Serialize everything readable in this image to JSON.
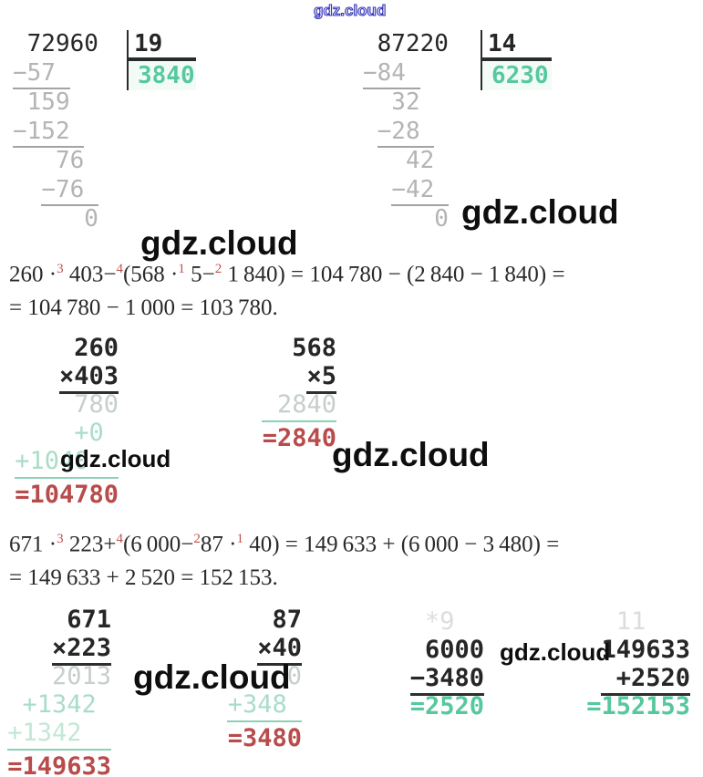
{
  "watermark": {
    "text": "gdz.cloud"
  },
  "colors": {
    "result_red": "#b94b4b",
    "result_green": "#55c89d",
    "quotient_green": "#57c9a0",
    "faint_green": "#a9ddc8",
    "faint_gray": "#c6cfc9",
    "step_gray": "#b4b4b4",
    "ink_black": "#262626",
    "watermark_blue": "#3434b8"
  },
  "division1": {
    "divisor": "19",
    "quotient": "3840",
    "rows": [
      {
        "cls": "blk",
        "segs": [
          {
            "t": " 72960"
          }
        ]
      },
      {
        "cls": "gry",
        "segs": [
          {
            "t": "−57 ",
            "u": true
          }
        ]
      },
      {
        "cls": "gry",
        "segs": [
          {
            "t": " 159"
          }
        ]
      },
      {
        "cls": "gry",
        "segs": [
          {
            "t": "−152 ",
            "u": true
          }
        ]
      },
      {
        "cls": "gry",
        "segs": [
          {
            "t": "   76"
          }
        ]
      },
      {
        "cls": "gry",
        "segs": [
          {
            "t": "  "
          },
          {
            "t": "−76 ",
            "u": true
          }
        ]
      },
      {
        "cls": "gry",
        "segs": [
          {
            "t": "     0"
          }
        ]
      }
    ]
  },
  "division2": {
    "divisor": "14",
    "quotient": "6230",
    "rows": [
      {
        "cls": "blk",
        "segs": [
          {
            "t": " 87220"
          }
        ]
      },
      {
        "cls": "gry",
        "segs": [
          {
            "t": "−84 ",
            "u": true
          }
        ]
      },
      {
        "cls": "gry",
        "segs": [
          {
            "t": "  32"
          }
        ]
      },
      {
        "cls": "gry",
        "segs": [
          {
            "t": " "
          },
          {
            "t": "−28 ",
            "u": true
          }
        ]
      },
      {
        "cls": "gry",
        "segs": [
          {
            "t": "   42"
          }
        ]
      },
      {
        "cls": "gry",
        "segs": [
          {
            "t": "  "
          },
          {
            "t": "−42 ",
            "u": true
          }
        ]
      },
      {
        "cls": "gry",
        "segs": [
          {
            "t": "     0"
          }
        ]
      }
    ]
  },
  "equation1": {
    "line1": [
      {
        "t": "260 ·"
      },
      {
        "sup": "3"
      },
      {
        "t": " 403−"
      },
      {
        "sup": "4"
      },
      {
        "t": "(568 ·"
      },
      {
        "sup": "1"
      },
      {
        "t": " 5−"
      },
      {
        "sup": "2"
      },
      {
        "t": " 1 840) = 104 780 − (2 840 − 1 840) ="
      }
    ],
    "line2": [
      {
        "t": "= 104 780 − 1 000 = 103 780."
      }
    ]
  },
  "equation2": {
    "line1": [
      {
        "t": "671 ·"
      },
      {
        "sup": "3"
      },
      {
        "t": " 223+"
      },
      {
        "sup": "4"
      },
      {
        "t": "(6 000−"
      },
      {
        "sup": "2"
      },
      {
        "t": "87 ·"
      },
      {
        "sup": "1"
      },
      {
        "t": " 40) = 149 633 + (6 000 − 3 480) ="
      }
    ],
    "line2": [
      {
        "t": "= 149 633 + 2 520 = 152 153."
      }
    ]
  },
  "mult260": {
    "rows": [
      {
        "cls": "blk",
        "segs": [
          {
            "t": "260"
          }
        ]
      },
      {
        "cls": "blk",
        "segs": [
          {
            "t": "×403",
            "ud": true
          }
        ]
      },
      {
        "cls": "fgy",
        "segs": [
          {
            "t": "780"
          }
        ]
      },
      {
        "cls": "fgn",
        "segs": [
          {
            "t": "+0 "
          }
        ]
      },
      {
        "cls": "fgn",
        "segs": [
          {
            "t": "+1040  "
          }
        ]
      },
      {
        "hr": true
      },
      {
        "cls": "red",
        "segs": [
          {
            "t": "=104780"
          }
        ]
      }
    ]
  },
  "mult568": {
    "rows": [
      {
        "cls": "blk",
        "segs": [
          {
            "t": "568"
          }
        ]
      },
      {
        "cls": "blk",
        "segs": [
          {
            "t": "×5",
            "ud": true
          }
        ]
      },
      {
        "cls": "fgy",
        "segs": [
          {
            "t": "2840"
          }
        ]
      },
      {
        "hr": true
      },
      {
        "cls": "red",
        "segs": [
          {
            "t": "=2840"
          }
        ]
      }
    ]
  },
  "mult671": {
    "rows": [
      {
        "cls": "blk",
        "segs": [
          {
            "t": "671"
          }
        ]
      },
      {
        "cls": "blk",
        "segs": [
          {
            "t": "×223",
            "ud": true
          }
        ]
      },
      {
        "cls": "fgy",
        "segs": [
          {
            "t": "2013"
          }
        ]
      },
      {
        "cls": "fgn",
        "segs": [
          {
            "t": "+1342 "
          }
        ]
      },
      {
        "cls": "fgn2",
        "segs": [
          {
            "t": "+1342  "
          }
        ]
      },
      {
        "hr": true
      },
      {
        "cls": "red",
        "segs": [
          {
            "t": "=149633"
          }
        ]
      }
    ]
  },
  "mult87": {
    "rows": [
      {
        "cls": "blk",
        "segs": [
          {
            "t": "87"
          }
        ]
      },
      {
        "cls": "blk",
        "segs": [
          {
            "t": "×40",
            "ud": true
          }
        ]
      },
      {
        "cls": "fgy",
        "segs": [
          {
            "t": "0"
          }
        ]
      },
      {
        "cls": "fgn",
        "segs": [
          {
            "t": "+348 "
          }
        ]
      },
      {
        "hr": true
      },
      {
        "cls": "red",
        "segs": [
          {
            "t": "=3480"
          }
        ]
      }
    ]
  },
  "sub6000": {
    "rows": [
      {
        "cls": "cry",
        "segs": [
          {
            "t": "*9  "
          }
        ]
      },
      {
        "cls": "blk",
        "segs": [
          {
            "t": "6000"
          }
        ]
      },
      {
        "cls": "blk",
        "segs": [
          {
            "t": "−3480",
            "ud": true
          }
        ]
      },
      {
        "cls": "grn",
        "segs": [
          {
            "t": "=2520"
          }
        ]
      }
    ]
  },
  "add149633": {
    "rows": [
      {
        "cls": "cry",
        "segs": [
          {
            "t": "11   "
          }
        ]
      },
      {
        "cls": "blk",
        "segs": [
          {
            "t": "149633"
          }
        ]
      },
      {
        "cls": "blk",
        "segs": [
          {
            "t": " +2520",
            "ud": true
          }
        ]
      },
      {
        "cls": "grn",
        "segs": [
          {
            "t": "=152153"
          }
        ]
      }
    ]
  }
}
